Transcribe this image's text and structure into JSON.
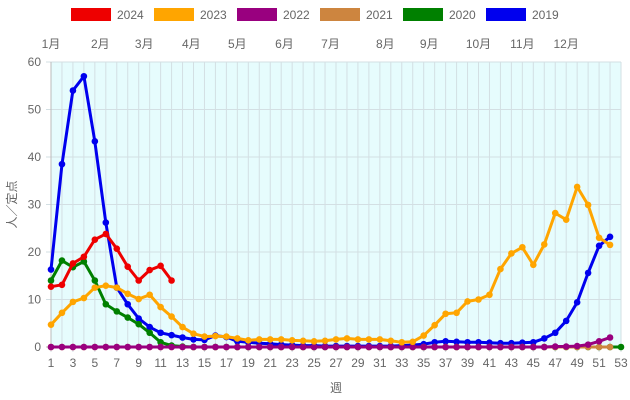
{
  "chart_data": {
    "type": "line",
    "title": "",
    "xlabel": "週",
    "ylabel": "人／定点",
    "xlim": [
      1,
      53
    ],
    "ylim": [
      0,
      60
    ],
    "x_ticks": [
      1,
      3,
      5,
      7,
      9,
      11,
      13,
      15,
      17,
      19,
      21,
      23,
      25,
      27,
      29,
      31,
      33,
      35,
      37,
      39,
      41,
      43,
      45,
      47,
      49,
      51,
      53
    ],
    "y_ticks": [
      0,
      10,
      20,
      30,
      40,
      50,
      60
    ],
    "grid": true,
    "plot_background": "#e6fcfd",
    "legend_position": "top",
    "months": [
      {
        "label": "1月",
        "week": 1
      },
      {
        "label": "2月",
        "week": 5.5
      },
      {
        "label": "3月",
        "week": 9.5
      },
      {
        "label": "4月",
        "week": 13.8
      },
      {
        "label": "5月",
        "week": 18
      },
      {
        "label": "6月",
        "week": 22.3
      },
      {
        "label": "7月",
        "week": 26.5
      },
      {
        "label": "8月",
        "week": 31.5
      },
      {
        "label": "9月",
        "week": 35.5
      },
      {
        "label": "10月",
        "week": 40
      },
      {
        "label": "11月",
        "week": 44
      },
      {
        "label": "12月",
        "week": 48
      }
    ],
    "series": [
      {
        "name": "2019",
        "color": "#0000ee",
        "x": [
          1,
          2,
          3,
          4,
          5,
          6,
          7,
          8,
          9,
          10,
          11,
          12,
          13,
          14,
          15,
          16,
          17,
          18,
          19,
          20,
          21,
          22,
          23,
          24,
          25,
          26,
          27,
          28,
          29,
          30,
          31,
          32,
          33,
          34,
          35,
          36,
          37,
          38,
          39,
          40,
          41,
          42,
          43,
          44,
          45,
          46,
          47,
          48,
          49,
          50,
          51,
          52
        ],
        "values": [
          16.3,
          38.5,
          54,
          57,
          43.3,
          26.2,
          12.5,
          9,
          6,
          4.2,
          3,
          2.5,
          2,
          1.6,
          1.5,
          2.4,
          2.1,
          1.2,
          1,
          0.8,
          0.7,
          0.5,
          0.4,
          0.3,
          0.3,
          0.2,
          0.2,
          0.2,
          0.2,
          0.2,
          0.2,
          0.2,
          0.3,
          0.4,
          0.6,
          1,
          1.2,
          1.1,
          1,
          1,
          0.9,
          0.8,
          0.8,
          0.9,
          1,
          1.8,
          3,
          5.5,
          9.4,
          15.6,
          21.3,
          23.2
        ]
      },
      {
        "name": "2020",
        "color": "#008000",
        "x": [
          1,
          2,
          3,
          4,
          5,
          6,
          7,
          8,
          9,
          10,
          11,
          12,
          13,
          14,
          15,
          16,
          17,
          18,
          19,
          20,
          21,
          22,
          23,
          24,
          25,
          26,
          27,
          28,
          29,
          30,
          31,
          32,
          33,
          34,
          35,
          36,
          37,
          38,
          39,
          40,
          41,
          42,
          43,
          44,
          45,
          46,
          47,
          48,
          49,
          50,
          51,
          52,
          53
        ],
        "values": [
          14,
          18.2,
          16.8,
          18,
          14,
          9,
          7.5,
          6.2,
          4.8,
          3,
          1,
          0.3,
          0.1,
          0,
          0,
          0,
          0,
          0,
          0,
          0,
          0,
          0,
          0,
          0,
          0,
          0,
          0,
          0,
          0,
          0,
          0,
          0,
          0,
          0,
          0,
          0,
          0,
          0,
          0,
          0,
          0,
          0,
          0,
          0,
          0,
          0,
          0,
          0,
          0,
          0,
          0,
          0,
          0
        ]
      },
      {
        "name": "2021",
        "color": "#cd853f",
        "x": [
          1,
          2,
          3,
          4,
          5,
          6,
          7,
          8,
          9,
          10,
          11,
          12,
          13,
          14,
          15,
          16,
          17,
          18,
          19,
          20,
          21,
          22,
          23,
          24,
          25,
          26,
          27,
          28,
          29,
          30,
          31,
          32,
          33,
          34,
          35,
          36,
          37,
          38,
          39,
          40,
          41,
          42,
          43,
          44,
          45,
          46,
          47,
          48,
          49,
          50,
          51,
          52
        ],
        "values": [
          0,
          0,
          0,
          0,
          0,
          0,
          0,
          0,
          0,
          0,
          0,
          0,
          0,
          0,
          0,
          0,
          0,
          0,
          0,
          0,
          0,
          0,
          0,
          0,
          0,
          0,
          0,
          0,
          0,
          0,
          0,
          0,
          0,
          0,
          0,
          0,
          0,
          0,
          0,
          0,
          0,
          0,
          0,
          0,
          0,
          0,
          0,
          0,
          0,
          0,
          0,
          0
        ]
      },
      {
        "name": "2022",
        "color": "#99007f",
        "x": [
          1,
          2,
          3,
          4,
          5,
          6,
          7,
          8,
          9,
          10,
          11,
          12,
          13,
          14,
          15,
          16,
          17,
          18,
          19,
          20,
          21,
          22,
          23,
          24,
          25,
          26,
          27,
          28,
          29,
          30,
          31,
          32,
          33,
          34,
          35,
          36,
          37,
          38,
          39,
          40,
          41,
          42,
          43,
          44,
          45,
          46,
          47,
          48,
          49,
          50,
          51,
          52
        ],
        "values": [
          0,
          0,
          0,
          0,
          0,
          0,
          0,
          0,
          0,
          0,
          0,
          0,
          0,
          0,
          0,
          0,
          0,
          0,
          0,
          0,
          0,
          0,
          0,
          0,
          0,
          0,
          0,
          0,
          0,
          0,
          0,
          0,
          0,
          0,
          0,
          0,
          0,
          0,
          0,
          0,
          0,
          0,
          0,
          0,
          0,
          0,
          0.1,
          0.1,
          0.2,
          0.5,
          1.2,
          2
        ]
      },
      {
        "name": "2023",
        "color": "#ffa500",
        "x": [
          1,
          2,
          3,
          4,
          5,
          6,
          7,
          8,
          9,
          10,
          11,
          12,
          13,
          14,
          15,
          16,
          17,
          18,
          19,
          20,
          21,
          22,
          23,
          24,
          25,
          26,
          27,
          28,
          29,
          30,
          31,
          32,
          33,
          34,
          35,
          36,
          37,
          38,
          39,
          40,
          41,
          42,
          43,
          44,
          45,
          46,
          47,
          48,
          49,
          50,
          51,
          52
        ],
        "values": [
          4.7,
          7.2,
          9.5,
          10.3,
          12.5,
          12.9,
          12.5,
          11.2,
          10.1,
          11,
          8.4,
          6.4,
          4.2,
          2.8,
          2.2,
          2.3,
          2.2,
          1.8,
          1.4,
          1.6,
          1.6,
          1.6,
          1.4,
          1.3,
          1.2,
          1.3,
          1.6,
          1.8,
          1.6,
          1.6,
          1.6,
          1.3,
          1,
          1.1,
          2.4,
          4.6,
          7,
          7.2,
          9.6,
          10,
          11,
          16.4,
          19.7,
          21,
          17.3,
          21.6,
          28.2,
          26.8,
          33.7,
          29.9,
          23,
          21.5
        ]
      },
      {
        "name": "2024",
        "color": "#ee0000",
        "x": [
          1,
          2,
          3,
          4,
          5,
          6,
          7,
          8,
          9,
          10,
          11,
          12
        ],
        "values": [
          12.7,
          13.1,
          17.6,
          19,
          22.6,
          23.8,
          20.7,
          16.9,
          14,
          16.2,
          17.1,
          14
        ]
      }
    ]
  }
}
